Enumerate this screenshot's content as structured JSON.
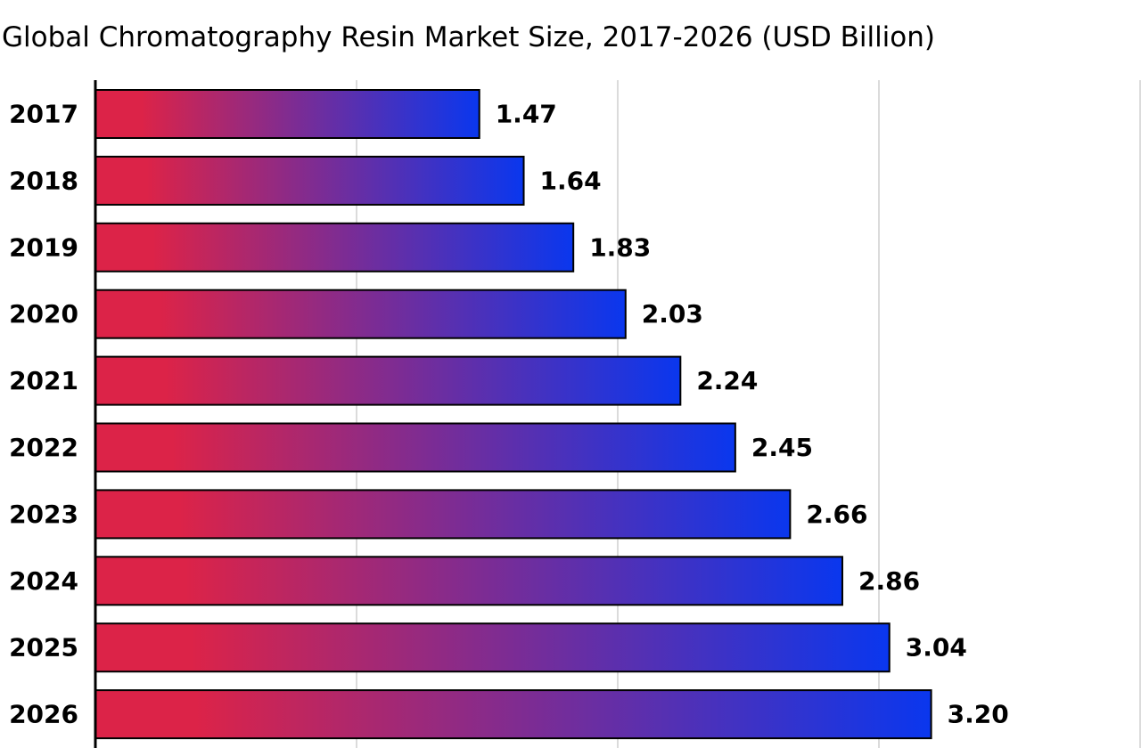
{
  "chart_data": {
    "type": "bar",
    "orientation": "horizontal",
    "title": "Global Chromatography Resin Market Size, 2017-2026 (USD Billion)",
    "categories": [
      "2017",
      "2018",
      "2019",
      "2020",
      "2021",
      "2022",
      "2023",
      "2024",
      "2025",
      "2026"
    ],
    "values": [
      1.47,
      1.64,
      1.83,
      2.03,
      2.24,
      2.45,
      2.66,
      2.86,
      3.04,
      3.2
    ],
    "value_labels": [
      "1.47",
      "1.64",
      "1.83",
      "2.03",
      "2.24",
      "2.45",
      "2.66",
      "2.86",
      "3.04",
      "3.20"
    ],
    "xlim": [
      0,
      4
    ],
    "grid": true,
    "legend": "none",
    "bar_gradient": [
      "#dc2348",
      "#0a37ee"
    ],
    "bar_outline": "#000000"
  }
}
